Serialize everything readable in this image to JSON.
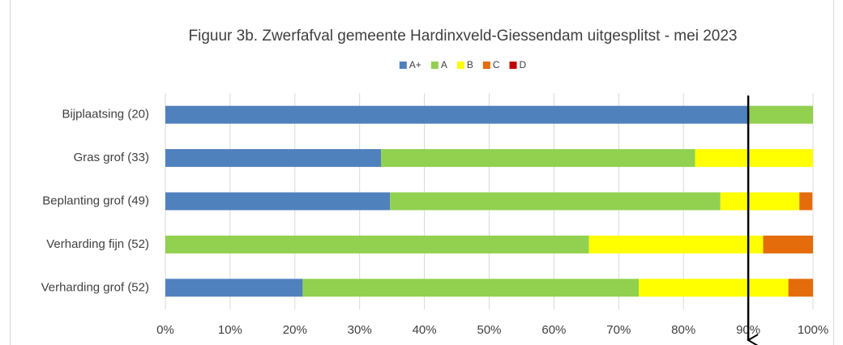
{
  "chart_data": {
    "type": "stacked_bar_horizontal",
    "title": "Figuur 3b. Zwerfafval gemeente Hardinxveld-Giessendam uitgesplitst - mei 2023",
    "categories": [
      "Bijplaatsing (20)",
      "Gras grof (33)",
      "Beplanting grof (49)",
      "Verharding fijn (52)",
      "Verharding grof (52)"
    ],
    "series": [
      {
        "name": "A+",
        "color": "#4f81bd",
        "values": [
          90.0,
          33.3,
          34.7,
          0,
          21.2
        ]
      },
      {
        "name": "A",
        "color": "#92d050",
        "values": [
          10.0,
          48.5,
          51.0,
          65.4,
          51.9
        ]
      },
      {
        "name": "B",
        "color": "#ffff00",
        "values": [
          0,
          18.2,
          12.2,
          26.9,
          23.1
        ]
      },
      {
        "name": "C",
        "color": "#e46c0a",
        "values": [
          0,
          0,
          2.0,
          7.7,
          3.8
        ]
      },
      {
        "name": "D",
        "color": "#c00000",
        "values": [
          0,
          0,
          0,
          0,
          0
        ]
      }
    ],
    "xlim": [
      0,
      100
    ],
    "xticks": [
      {
        "value": 0,
        "label": "0%"
      },
      {
        "value": 10,
        "label": "10%"
      },
      {
        "value": 20,
        "label": "20%"
      },
      {
        "value": 30,
        "label": "30%"
      },
      {
        "value": 40,
        "label": "40%"
      },
      {
        "value": 50,
        "label": "50%"
      },
      {
        "value": 60,
        "label": "60%"
      },
      {
        "value": 70,
        "label": "70%"
      },
      {
        "value": 80,
        "label": "80%"
      },
      {
        "value": 90,
        "label": "90%"
      },
      {
        "value": 100,
        "label": "100%"
      }
    ],
    "grid": true,
    "legend": "top",
    "annotation_arrow": {
      "x": 90
    }
  }
}
